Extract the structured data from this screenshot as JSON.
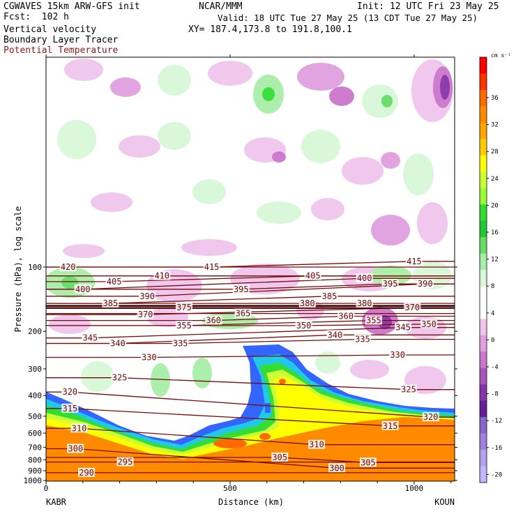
{
  "header": {
    "model": "CGWAVES 15km ARW-GFS init",
    "forecast": "Fcst:  102 h",
    "org": "NCAR/MMM",
    "init": "Init: 12 UTC Fri 23 May 25",
    "valid": "Valid: 18 UTC Tue 27 May 25 (13 CDT Tue 27 May 25)",
    "xy": "XY= 187.4,173.8 to 191.8,100.1",
    "fields": [
      "Vertical velocity",
      "Boundary Layer Tracer",
      "Potential Temperature"
    ]
  },
  "colorbar": {
    "unit": "cm s⁻¹",
    "labels": [
      "36",
      "32",
      "28",
      "24",
      "20",
      "16",
      "12",
      "8",
      "4",
      "0",
      "-4",
      "-8",
      "-12",
      "-16",
      "-20"
    ],
    "colors": [
      "#ff0000",
      "#ff3300",
      "#ff6a00",
      "#ff8a00",
      "#ffa500",
      "#ffcc00",
      "#ffff00",
      "#ccff33",
      "#99ff33",
      "#33dd33",
      "#22c833",
      "#66dd66",
      "#a8eea8",
      "#d8f8d8",
      "#ffffff",
      "#ffffff",
      "#f0c6ee",
      "#e0a0e0",
      "#cc77cc",
      "#aa55bb",
      "#8833aa",
      "#661f99",
      "#8866cc",
      "#a080dd",
      "#b5a0ee",
      "#c0b8ff"
    ]
  },
  "chart_data": {
    "type": "heatmap",
    "title": "Vertical velocity / Boundary Layer Tracer / Potential Temperature",
    "xlabel": "Distance (km)",
    "ylabel": "Pressure (hPa), log scale",
    "xlim": [
      0,
      1110
    ],
    "ylim": [
      1000,
      10
    ],
    "x_ticks": [
      0,
      500,
      1000
    ],
    "y_ticks": [
      100,
      200,
      300,
      400,
      500,
      600,
      700,
      800,
      900,
      1000
    ],
    "y_scale": "log",
    "start_label": "KABR",
    "end_label": "KOUN",
    "theta_labels": [
      {
        "text": "420",
        "x": 60,
        "p": 100
      },
      {
        "text": "415",
        "x": 450,
        "p": 100
      },
      {
        "text": "415",
        "x": 1000,
        "p": 94
      },
      {
        "text": "410",
        "x": 315,
        "p": 110
      },
      {
        "text": "405",
        "x": 185,
        "p": 117
      },
      {
        "text": "405",
        "x": 725,
        "p": 110
      },
      {
        "text": "400",
        "x": 100,
        "p": 127
      },
      {
        "text": "400",
        "x": 865,
        "p": 113
      },
      {
        "text": "395",
        "x": 530,
        "p": 127
      },
      {
        "text": "395",
        "x": 935,
        "p": 120
      },
      {
        "text": "390",
        "x": 275,
        "p": 137
      },
      {
        "text": "390",
        "x": 1030,
        "p": 120
      },
      {
        "text": "385",
        "x": 175,
        "p": 148
      },
      {
        "text": "385",
        "x": 770,
        "p": 137
      },
      {
        "text": "380",
        "x": 710,
        "p": 148
      },
      {
        "text": "380",
        "x": 865,
        "p": 148
      },
      {
        "text": "375",
        "x": 375,
        "p": 155
      },
      {
        "text": "370",
        "x": 270,
        "p": 167
      },
      {
        "text": "370",
        "x": 995,
        "p": 155
      },
      {
        "text": "365",
        "x": 535,
        "p": 165
      },
      {
        "text": "360",
        "x": 455,
        "p": 178
      },
      {
        "text": "360",
        "x": 815,
        "p": 170
      },
      {
        "text": "355",
        "x": 375,
        "p": 188
      },
      {
        "text": "355",
        "x": 890,
        "p": 178
      },
      {
        "text": "350",
        "x": 700,
        "p": 188
      },
      {
        "text": "350",
        "x": 1040,
        "p": 185
      },
      {
        "text": "345",
        "x": 120,
        "p": 215
      },
      {
        "text": "345",
        "x": 970,
        "p": 192
      },
      {
        "text": "340",
        "x": 195,
        "p": 228
      },
      {
        "text": "340",
        "x": 785,
        "p": 208
      },
      {
        "text": "335",
        "x": 365,
        "p": 228
      },
      {
        "text": "335",
        "x": 860,
        "p": 218
      },
      {
        "text": "330",
        "x": 280,
        "p": 265
      },
      {
        "text": "330",
        "x": 955,
        "p": 258
      },
      {
        "text": "325",
        "x": 200,
        "p": 330
      },
      {
        "text": "325",
        "x": 985,
        "p": 375
      },
      {
        "text": "320",
        "x": 65,
        "p": 385
      },
      {
        "text": "320",
        "x": 1045,
        "p": 505
      },
      {
        "text": "315",
        "x": 65,
        "p": 460
      },
      {
        "text": "315",
        "x": 935,
        "p": 555
      },
      {
        "text": "310",
        "x": 90,
        "p": 570
      },
      {
        "text": "310",
        "x": 735,
        "p": 680
      },
      {
        "text": "305",
        "x": 635,
        "p": 780
      },
      {
        "text": "305",
        "x": 875,
        "p": 825
      },
      {
        "text": "300",
        "x": 80,
        "p": 710
      },
      {
        "text": "300",
        "x": 790,
        "p": 875
      },
      {
        "text": "295",
        "x": 215,
        "p": 820
      },
      {
        "text": "290",
        "x": 110,
        "p": 920
      }
    ]
  }
}
